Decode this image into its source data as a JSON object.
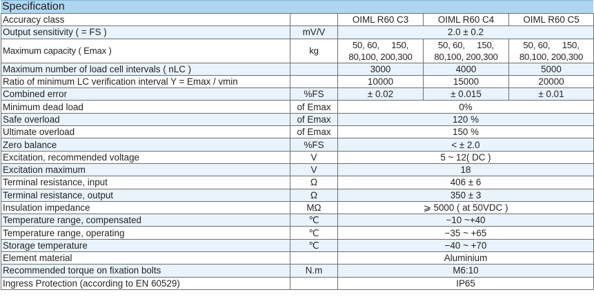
{
  "title": "Specification",
  "header_row": {
    "param": "Accuracy class",
    "unit": "",
    "classes": [
      "OIML R60 C3",
      "OIML R60 C4",
      "OIML R60 C5"
    ]
  },
  "capacity": {
    "param": "Maximum capacity ( Emax )",
    "unit": "kg",
    "cells": [
      {
        "a1": "50, 60,",
        "a2": "150,",
        "b1": "80,100,",
        "b2": "200,300"
      },
      {
        "a1": "50, 60,",
        "a2": "150,",
        "b1": "80,100,",
        "b2": "200,300"
      },
      {
        "a1": "50, 60,",
        "a2": "150,",
        "b1": "80,100,",
        "b2": "200,300"
      }
    ]
  },
  "rows": {
    "sensitivity": {
      "param": "Output sensitivity ( = FS )",
      "unit": "mV/V",
      "value": "2.0 ± 0.2"
    },
    "nlc": {
      "param": "Maximum number of load cell intervals ( nLC )",
      "unit": "",
      "values": [
        "3000",
        "4000",
        "5000"
      ]
    },
    "vmin": {
      "param": "Ratio of minimum LC verification interval Y = Emax / vmin",
      "unit": "",
      "values": [
        "10000",
        "15000",
        "20000"
      ]
    },
    "combined": {
      "param": "Combined error",
      "unit": "%FS",
      "values": [
        "± 0.02",
        "± 0.015",
        "± 0.01"
      ]
    },
    "dead_load": {
      "param": "Minimum dead load",
      "unit": "of Emax",
      "value": "0%"
    },
    "safe_overload": {
      "param": "Safe overload",
      "unit": "of Emax",
      "value": "120 %"
    },
    "ultimate_overload": {
      "param": "Ultimate overload",
      "unit": "of Emax",
      "value": "150 %"
    },
    "zero_balance": {
      "param": "Zero balance",
      "unit": "%FS",
      "value": "< ± 2.0"
    },
    "excitation_rec": {
      "param": "Excitation, recommended voltage",
      "unit": "V",
      "value": "5 ~ 12( DC )"
    },
    "excitation_max": {
      "param": "Excitation maximum",
      "unit": "V",
      "value": "18"
    },
    "res_input": {
      "param": "Terminal resistance, input",
      "unit": "Ω",
      "value": "406 ± 6"
    },
    "res_output": {
      "param": "Terminal resistance, output",
      "unit": "Ω",
      "value": "350 ± 3"
    },
    "insulation": {
      "param": "Insulation impedance",
      "unit": "MΩ",
      "value": "⩾ 5000 ( at 50VDC )"
    },
    "temp_comp": {
      "param": "Temperature range, compensated",
      "unit": "℃",
      "value": "−10 ~+40"
    },
    "temp_op": {
      "param": "Temperature range, operating",
      "unit": "℃",
      "value": "−35 ~ +65"
    },
    "storage": {
      "param": "Storage temperature",
      "unit": "℃",
      "value": "−40 ~ +70"
    },
    "material": {
      "param": "Element material",
      "unit": "",
      "value": "Aluminium"
    },
    "torque": {
      "param": "Recommended torque on fixation bolts",
      "unit": "N.m",
      "value": "M6:10"
    },
    "ingress": {
      "param": "Ingress Protection (according to EN 60529)",
      "unit": "",
      "value": "IP65"
    }
  }
}
